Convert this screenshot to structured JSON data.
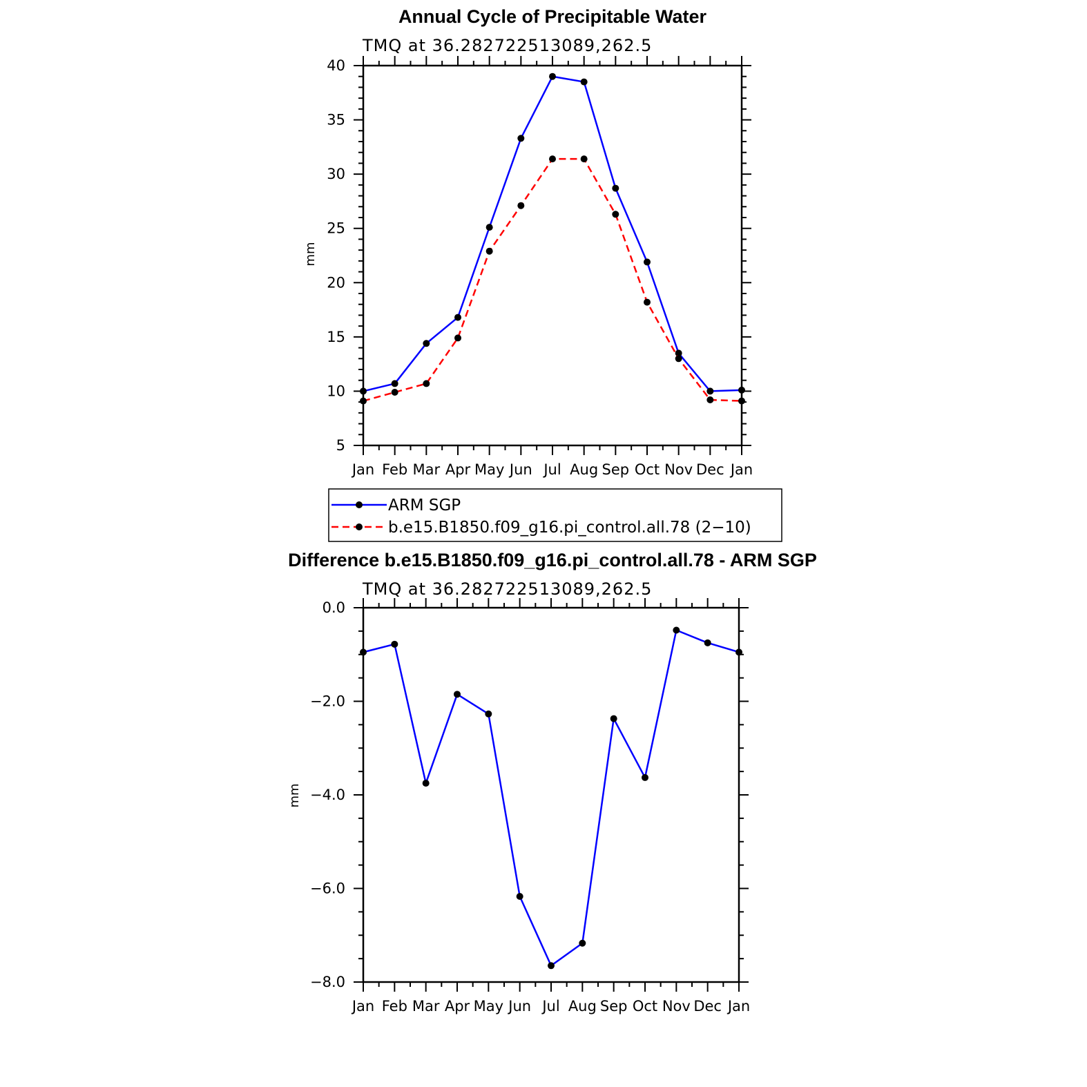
{
  "chart_data": [
    {
      "type": "line",
      "title": "Annual Cycle of Precipitable Water",
      "subtitle": "TMQ  at  36.282722513089,262.5",
      "xlabel": "",
      "ylabel": "mm",
      "categories": [
        "Jan",
        "Feb",
        "Mar",
        "Apr",
        "May",
        "Jun",
        "Jul",
        "Aug",
        "Sep",
        "Oct",
        "Nov",
        "Dec",
        "Jan"
      ],
      "ylim": [
        5,
        40
      ],
      "yticks": [
        5,
        10,
        15,
        20,
        25,
        30,
        35,
        40
      ],
      "ytick_labels": [
        "5",
        "10",
        "15",
        "20",
        "25",
        "30",
        "35",
        "40"
      ],
      "series": [
        {
          "name": "ARM  SGP",
          "color": "#0000ff",
          "dashed": false,
          "values": [
            10.0,
            10.7,
            14.4,
            16.8,
            25.1,
            33.3,
            39.0,
            38.5,
            28.7,
            21.9,
            13.5,
            10.0,
            10.1
          ]
        },
        {
          "name": "b.e15.B1850.f09_g16.pi_control.all.78  (2−10)",
          "color": "#ff0000",
          "dashed": true,
          "values": [
            9.1,
            9.9,
            10.7,
            14.9,
            22.9,
            27.1,
            31.4,
            31.4,
            26.3,
            18.2,
            13.0,
            9.2,
            9.1
          ]
        }
      ]
    },
    {
      "type": "line",
      "title": "Difference b.e15.B1850.f09_g16.pi_control.all.78 - ARM SGP",
      "subtitle": "TMQ  at  36.282722513089,262.5",
      "xlabel": "",
      "ylabel": "mm",
      "categories": [
        "Jan",
        "Feb",
        "Mar",
        "Apr",
        "May",
        "Jun",
        "Jul",
        "Aug",
        "Sep",
        "Oct",
        "Nov",
        "Dec",
        "Jan"
      ],
      "ylim": [
        -8,
        0
      ],
      "yticks": [
        -8,
        -6,
        -4,
        -2,
        0
      ],
      "ytick_labels": [
        "−8.0",
        "−6.0",
        "−4.0",
        "−2.0",
        "0.0"
      ],
      "series": [
        {
          "name": "Difference",
          "color": "#0000ff",
          "dashed": false,
          "values": [
            -0.95,
            -0.78,
            -3.75,
            -1.85,
            -2.27,
            -6.17,
            -7.65,
            -7.17,
            -2.37,
            -3.63,
            -0.48,
            -0.75,
            -0.95
          ]
        }
      ]
    }
  ]
}
